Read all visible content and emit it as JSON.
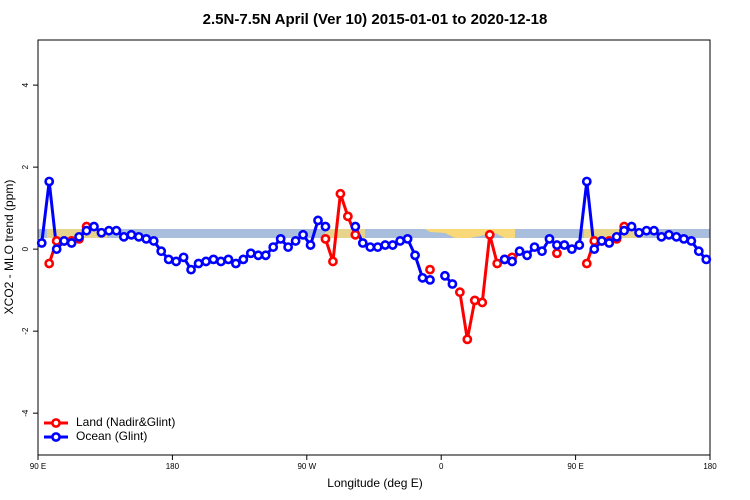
{
  "chart_data": {
    "type": "line",
    "title": "2.5N-7.5N April (Ver 10)   2015-01-01 to 2020-12-18",
    "xlabel": "Longitude (deg E)",
    "ylabel": "XCO2 - MLO trend (ppm)",
    "xlim": [
      90,
      540
    ],
    "ylim": [
      -5.02,
      5.1
    ],
    "xticks": [
      {
        "value": 90,
        "label": "90 E"
      },
      {
        "value": 180,
        "label": "180"
      },
      {
        "value": 270,
        "label": "90 W"
      },
      {
        "value": 360,
        "label": "0"
      },
      {
        "value": 450,
        "label": "90 E"
      },
      {
        "value": 540,
        "label": "180"
      }
    ],
    "yticks": [
      -4,
      -2,
      0,
      2,
      4
    ],
    "legend": "bottom-left",
    "x": [
      92.5,
      97.5,
      102.5,
      107.5,
      112.5,
      117.5,
      122.5,
      127.5,
      132.5,
      137.5,
      142.5,
      147.5,
      152.5,
      157.5,
      162.5,
      167.5,
      172.5,
      177.5,
      182.5,
      187.5,
      192.5,
      197.5,
      202.5,
      207.5,
      212.5,
      217.5,
      222.5,
      227.5,
      232.5,
      237.5,
      242.5,
      247.5,
      252.5,
      257.5,
      262.5,
      267.5,
      272.5,
      277.5,
      282.5,
      287.5,
      292.5,
      297.5,
      302.5,
      307.5,
      312.5,
      317.5,
      322.5,
      327.5,
      332.5,
      337.5,
      342.5,
      347.5,
      352.5,
      357.5,
      362.5,
      367.5,
      372.5,
      377.5,
      382.5,
      387.5,
      392.5,
      397.5,
      402.5,
      407.5,
      412.5,
      417.5,
      422.5,
      427.5,
      432.5,
      437.5,
      442.5,
      447.5,
      452.5,
      457.5,
      462.5,
      467.5,
      472.5,
      477.5,
      482.5,
      487.5,
      492.5,
      497.5,
      502.5,
      507.5,
      512.5,
      517.5,
      522.5,
      527.5,
      532.5,
      537.5
    ],
    "series": [
      {
        "name": "Land (Nadir&Glint)",
        "color": "#ff0000",
        "values": [
          null,
          -0.35,
          0.2,
          0.2,
          0.2,
          0.25,
          0.55,
          null,
          null,
          null,
          null,
          null,
          null,
          null,
          null,
          null,
          null,
          null,
          null,
          null,
          null,
          null,
          null,
          null,
          null,
          null,
          null,
          null,
          null,
          null,
          null,
          null,
          null,
          null,
          null,
          null,
          null,
          null,
          0.25,
          -0.3,
          1.35,
          0.8,
          0.35,
          null,
          null,
          null,
          null,
          null,
          null,
          null,
          null,
          null,
          -0.5,
          null,
          null,
          null,
          -1.05,
          -2.2,
          -1.25,
          -1.3,
          0.35,
          -0.35,
          -0.25,
          -0.2,
          null,
          null,
          null,
          null,
          null,
          -0.1,
          null,
          null,
          null,
          -0.35,
          0.2,
          0.2,
          0.2,
          0.25,
          0.55,
          null,
          null,
          null,
          null,
          null,
          null,
          null,
          null,
          null,
          null,
          null
        ]
      },
      {
        "name": "Ocean (Glint)",
        "color": "#0000ff",
        "values": [
          0.15,
          1.65,
          0.0,
          0.2,
          0.15,
          0.3,
          0.45,
          0.55,
          0.4,
          0.45,
          0.45,
          0.3,
          0.35,
          0.3,
          0.25,
          0.2,
          -0.05,
          -0.25,
          -0.3,
          -0.2,
          -0.5,
          -0.35,
          -0.3,
          -0.25,
          -0.3,
          -0.25,
          -0.35,
          -0.25,
          -0.1,
          -0.15,
          -0.15,
          0.05,
          0.25,
          0.05,
          0.2,
          0.35,
          0.1,
          0.7,
          0.55,
          null,
          null,
          null,
          0.55,
          0.15,
          0.05,
          0.05,
          0.1,
          0.1,
          0.2,
          0.25,
          -0.15,
          -0.7,
          -0.75,
          null,
          -0.65,
          -0.85,
          null,
          null,
          null,
          null,
          null,
          null,
          -0.25,
          -0.3,
          -0.05,
          -0.15,
          0.05,
          -0.05,
          0.25,
          0.1,
          0.1,
          0.0,
          0.1,
          1.65,
          0.0,
          0.2,
          0.15,
          0.3,
          0.45,
          0.55,
          0.4,
          0.45,
          0.45,
          0.3,
          0.35,
          0.3,
          0.25,
          0.2,
          -0.05,
          -0.25
        ]
      }
    ]
  }
}
